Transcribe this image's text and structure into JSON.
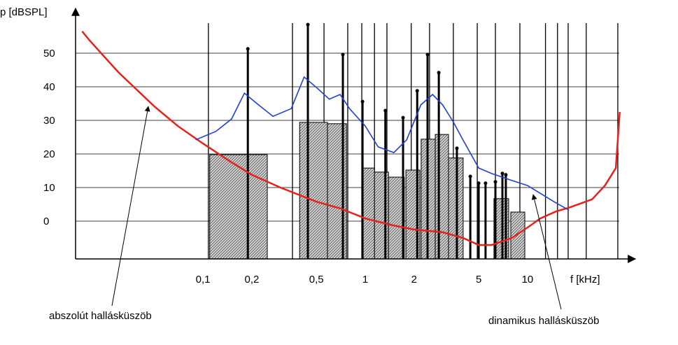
{
  "chart_data": {
    "type": "line",
    "ylabel": "p [dBSPL]",
    "xlabel": "f [kHz]",
    "log_x": true,
    "xlim": [
      0.0164,
      44.8
    ],
    "ylim": [
      -11.25,
      62.7
    ],
    "yticks": [
      0,
      10,
      20,
      30,
      40,
      50
    ],
    "xticks": [
      {
        "value": 0.1,
        "label": "0,1"
      },
      {
        "value": 0.2,
        "label": "0,2"
      },
      {
        "value": 0.5,
        "label": "0,5"
      },
      1,
      2,
      5,
      10
    ],
    "grid": true,
    "series": [
      {
        "name": "abszolút hallásküszöb",
        "color": "#e8201a",
        "x": [
          0.018,
          0.02,
          0.03,
          0.05,
          0.07,
          0.1,
          0.15,
          0.2,
          0.3,
          0.5,
          0.7,
          1,
          1.5,
          2,
          3,
          4,
          5,
          6,
          7,
          8,
          10,
          12,
          15,
          18,
          20,
          25,
          30,
          35,
          37
        ],
        "values": [
          56.5,
          53.8,
          44.4,
          34.2,
          28.3,
          23.1,
          17.5,
          13.8,
          10,
          5.8,
          3.8,
          0.8,
          -1.3,
          -2.5,
          -3.3,
          -5,
          -7.1,
          -7.1,
          -6,
          -5,
          -1.9,
          0.8,
          2.9,
          4,
          4.8,
          6.5,
          10.6,
          15.8,
          32.5
        ]
      },
      {
        "name": "dinamikus hallásküszöb",
        "color": "#1f3fd6",
        "x": [
          0.09,
          0.12,
          0.15,
          0.18,
          0.22,
          0.27,
          0.35,
          0.42,
          0.5,
          0.6,
          0.7,
          0.8,
          1,
          1.2,
          1.5,
          1.8,
          2.2,
          2.6,
          3,
          3.5,
          4,
          5,
          6,
          8,
          10,
          15,
          18
        ],
        "values": [
          24.2,
          26.7,
          30.4,
          38.1,
          34.6,
          31.2,
          33.5,
          42.9,
          39.8,
          36.3,
          37.7,
          33.5,
          28.3,
          22.1,
          20.4,
          24.2,
          34.6,
          37.7,
          34.6,
          29.4,
          24.2,
          15.8,
          14.2,
          12.1,
          10.6,
          5.4,
          3.3
        ]
      }
    ],
    "blocks": [
      {
        "x_start": 0.11,
        "x_end": 0.249,
        "value": 19.8
      },
      {
        "x_start": 0.394,
        "x_end": 0.585,
        "value": 29.4
      },
      {
        "x_start": 0.585,
        "x_end": 0.766,
        "value": 29
      },
      {
        "x_start": 0.962,
        "x_end": 1.14,
        "value": 15.8
      },
      {
        "x_start": 1.14,
        "x_end": 1.39,
        "value": 14.6
      },
      {
        "x_start": 1.39,
        "x_end": 1.74,
        "value": 13.1
      },
      {
        "x_start": 1.78,
        "x_end": 2.17,
        "value": 15.2
      },
      {
        "x_start": 2.21,
        "x_end": 2.7,
        "value": 24.4
      },
      {
        "x_start": 2.7,
        "x_end": 3.26,
        "value": 25.8
      },
      {
        "x_start": 3.26,
        "x_end": 4.01,
        "value": 18.8
      },
      {
        "x_start": 6.21,
        "x_end": 7.65,
        "value": 6.7
      },
      {
        "x_start": 7.88,
        "x_end": 9.62,
        "value": 2.7
      }
    ],
    "maskers": {
      "x": [
        0.189,
        0.443,
        0.728,
        0.962,
        1.33,
        1.71,
        2.09,
        2.42,
        2.84,
        3.67,
        4.44,
        5,
        5.51,
        6.34,
        7,
        7.35
      ],
      "values": [
        51.3,
        58.5,
        49.6,
        35.6,
        32.9,
        30.8,
        38.8,
        49.6,
        44.2,
        21.7,
        13.3,
        11.3,
        11.3,
        11.7,
        14.2,
        13.8
      ]
    },
    "band_lines": [
      0.108,
      0.356,
      0.557,
      0.78,
      0.952,
      1.14,
      1.36,
      1.92,
      2.49,
      3.49,
      4.9,
      6.34,
      8.97,
      12.9,
      15.3,
      17.8,
      23,
      36
    ]
  }
}
